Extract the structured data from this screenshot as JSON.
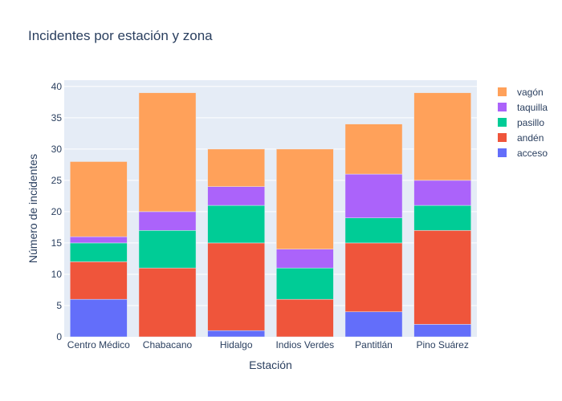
{
  "chart_data": {
    "type": "bar",
    "stacked": true,
    "title": "Incidentes por estación y zona",
    "xlabel": "Estación",
    "ylabel": "Número de incidentes",
    "categories": [
      "Centro Médico",
      "Chabacano",
      "Hidalgo",
      "Indios Verdes",
      "Pantitlán",
      "Pino Suárez"
    ],
    "ylim": [
      0,
      41
    ],
    "yticks": [
      0,
      5,
      10,
      15,
      20,
      25,
      30,
      35,
      40
    ],
    "grid": true,
    "legend_position": "right",
    "series": [
      {
        "name": "acceso",
        "color": "#636efa",
        "values": [
          6,
          0,
          1,
          0,
          4,
          2
        ]
      },
      {
        "name": "andén",
        "color": "#ef553b",
        "values": [
          6,
          11,
          14,
          6,
          11,
          15
        ]
      },
      {
        "name": "pasillo",
        "color": "#00cc96",
        "values": [
          3,
          6,
          6,
          5,
          4,
          4
        ]
      },
      {
        "name": "taquilla",
        "color": "#ab63fa",
        "values": [
          1,
          3,
          3,
          3,
          7,
          4
        ]
      },
      {
        "name": "vagón",
        "color": "#ffa15a",
        "values": [
          12,
          19,
          6,
          16,
          8,
          14
        ]
      }
    ],
    "plot_background": "#e5ecf6"
  }
}
